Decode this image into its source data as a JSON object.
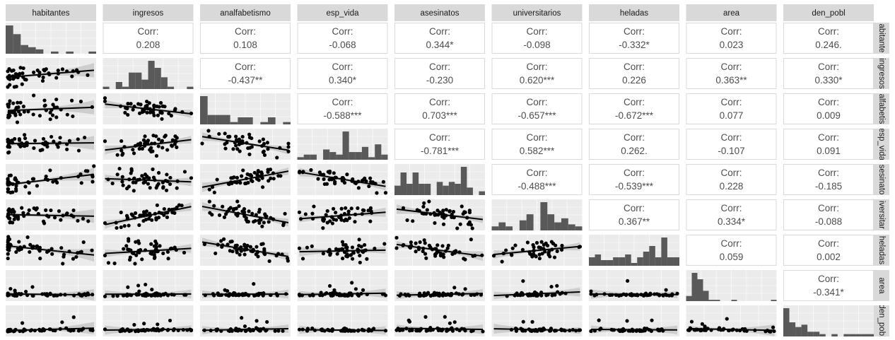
{
  "chart_data": {
    "type": "scatterplot-matrix",
    "variables": [
      "habitantes",
      "ingresos",
      "analfabetismo",
      "esp_vida",
      "asesinatos",
      "universitarios",
      "heladas",
      "area",
      "den_pobl"
    ],
    "row_labels": [
      "abitante",
      "ingresos",
      "alfabetis",
      "esp_vida",
      "sesinato",
      "iversitar",
      "heladas",
      "area",
      "den_pobl"
    ],
    "corr_label": "Corr:",
    "correlations": [
      [
        "",
        "0.208",
        "0.108",
        "-0.068",
        "0.344*",
        "-0.098",
        "-0.332*",
        "0.023",
        "0.246."
      ],
      [
        "",
        "",
        "-0.437**",
        "0.340*",
        "-0.230",
        "0.620***",
        "0.226",
        "0.363**",
        "0.330*"
      ],
      [
        "",
        "",
        "",
        "-0.588***",
        "0.703***",
        "-0.657***",
        "-0.672***",
        "0.077",
        "0.009"
      ],
      [
        "",
        "",
        "",
        "",
        "-0.781***",
        "0.582***",
        "0.262.",
        "-0.107",
        "0.091"
      ],
      [
        "",
        "",
        "",
        "",
        "",
        "-0.488***",
        "-0.539***",
        "0.228",
        "-0.185"
      ],
      [
        "",
        "",
        "",
        "",
        "",
        "",
        "0.367**",
        "0.334*",
        "-0.088"
      ],
      [
        "",
        "",
        "",
        "",
        "",
        "",
        "",
        "0.059",
        "0.002"
      ],
      [
        "",
        "",
        "",
        "",
        "",
        "",
        "",
        "",
        "-0.341*"
      ],
      [
        "",
        "",
        "",
        "",
        "",
        "",
        "",
        "",
        ""
      ]
    ],
    "histograms": [
      [
        13,
        9,
        4,
        3,
        2,
        0,
        1,
        0,
        1,
        0,
        0,
        1
      ],
      [
        1,
        0,
        3,
        1,
        7,
        7,
        4,
        12,
        9,
        5,
        1,
        0,
        0,
        1
      ],
      [
        12,
        4,
        4,
        4,
        1,
        3,
        3,
        0,
        1,
        3,
        0,
        1
      ],
      [
        1,
        2,
        2,
        0,
        4,
        3,
        2,
        11,
        3,
        3,
        5,
        1,
        6,
        2
      ],
      [
        5,
        12,
        6,
        12,
        6,
        6,
        0,
        7,
        5,
        7,
        6,
        15,
        4,
        0,
        2
      ],
      [
        2,
        4,
        2,
        0,
        5,
        8,
        0,
        14,
        8,
        4,
        6,
        3,
        2
      ],
      [
        3,
        4,
        2,
        2,
        3,
        3,
        4,
        1,
        3,
        5,
        7,
        3,
        10,
        3,
        3
      ],
      [
        4,
        22,
        17,
        8,
        1,
        1,
        0,
        0,
        1,
        0,
        0,
        0,
        0,
        0,
        0,
        1
      ],
      [
        12,
        6,
        4,
        5,
        2,
        2,
        1,
        0,
        1,
        0,
        1,
        1,
        1,
        1,
        1
      ]
    ],
    "scatter": {
      "n_points": 50,
      "fit": "linear regression with confidence band"
    },
    "colors": {
      "panel_bg": "#ebebeb",
      "strip_bg": "#d9d9d9",
      "grid": "#ffffff",
      "ink": "#000000",
      "bar": "#595959",
      "band": "#c8c8c8",
      "corr_text": "#4d4d4d",
      "corr_border": "#d9d9d9"
    }
  }
}
